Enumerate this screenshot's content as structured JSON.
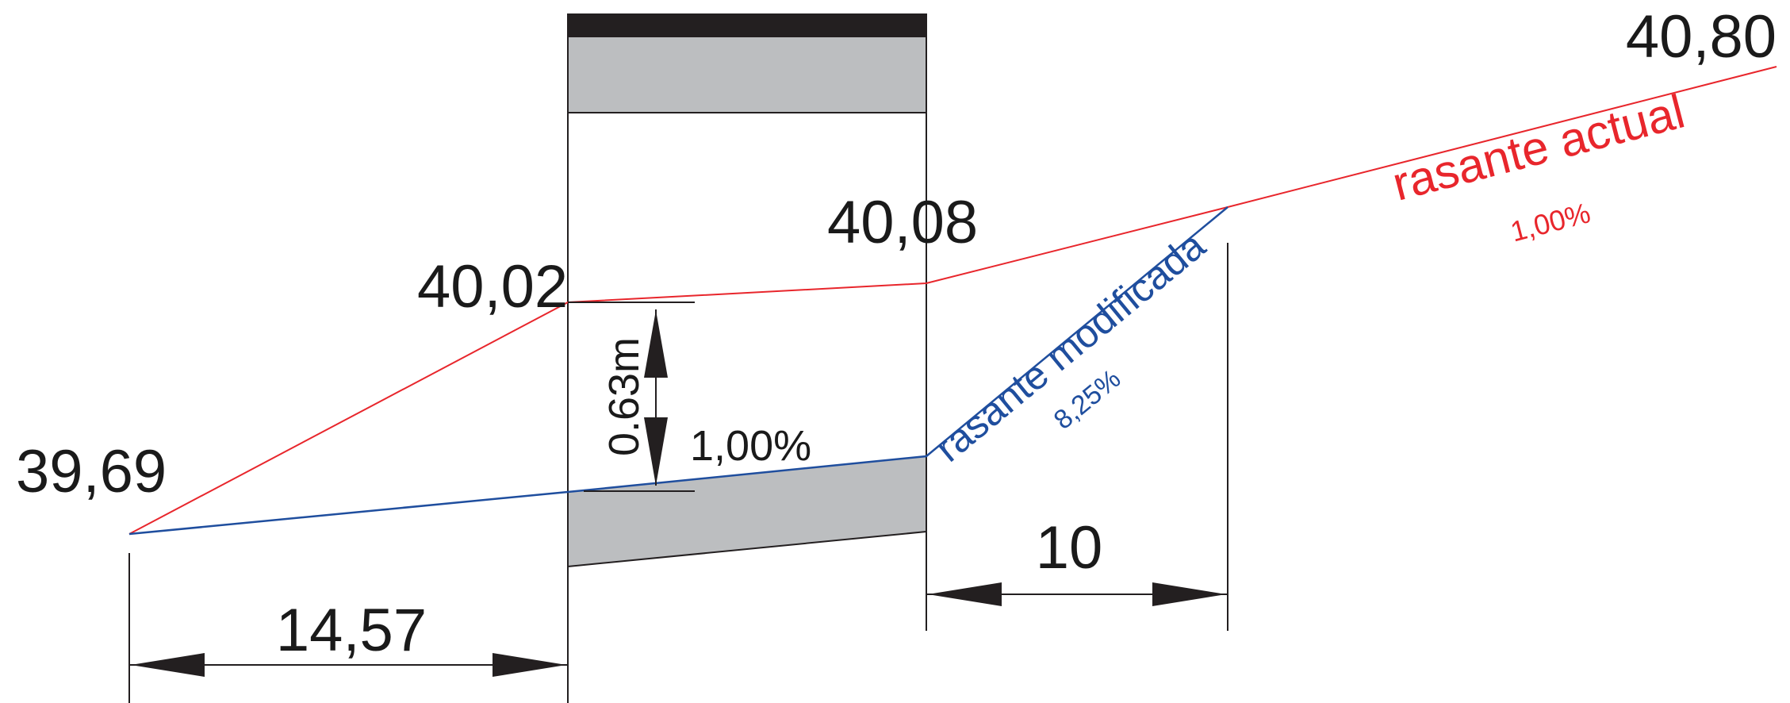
{
  "elevations": {
    "left": "39,69",
    "culvert_left": "40,02",
    "culvert_right": "40,08",
    "right": "40,80"
  },
  "dimensions": {
    "left_length": "14,57",
    "right_length": "10",
    "depth": "0.63m",
    "inner_slope": "1,00%"
  },
  "labels": {
    "current_grade": "rasante actual",
    "current_grade_slope": "1,00%",
    "modified_grade": "rasante modificada",
    "modified_grade_slope": "8,25%"
  },
  "colors": {
    "current_grade": "#e8262c",
    "modified_grade": "#1f4e9e",
    "fill": "#bcbec0",
    "cap": "#231f20"
  }
}
